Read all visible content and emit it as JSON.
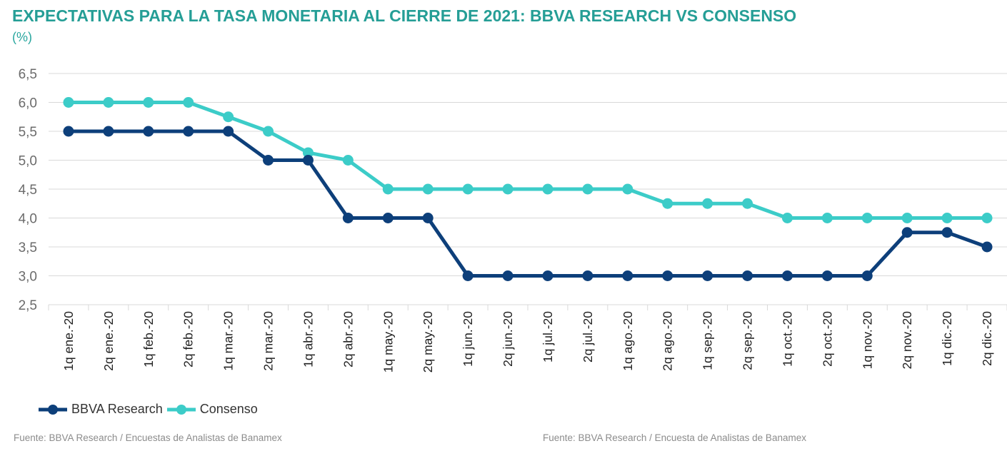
{
  "header": {
    "title": "EXPECTATIVAS PARA LA TASA MONETARIA AL CIERRE DE 2021: BBVA RESEARCH VS CONSENSO",
    "unit": "(%)"
  },
  "footer": {
    "source_left": "Fuente: BBVA Research / Encuestas de Analistas de Banamex",
    "source_right": "Fuente: BBVA Research / Encuesta de Analistas de Banamex"
  },
  "colors": {
    "title": "#259e96",
    "bbva": "#0d3f7a",
    "consenso": "#3cccc8",
    "grid": "#d9d9d9",
    "axis_text": "#6b6b6b"
  },
  "chart_data": {
    "type": "line",
    "categories": [
      "1q ene.-20",
      "2q ene.-20",
      "1q feb.-20",
      "2q feb.-20",
      "1q mar.-20",
      "2q mar.-20",
      "1q abr.-20",
      "2q abr.-20",
      "1q may.-20",
      "2q may.-20",
      "1q jun.-20",
      "2q jun.-20",
      "1q jul.-20",
      "2q jul.-20",
      "1q ago.-20",
      "2q ago.-20",
      "1q sep.-20",
      "2q sep.-20",
      "1q oct.-20",
      "2q oct.-20",
      "1q nov.-20",
      "2q nov.-20",
      "1q dic.-20",
      "2q dic.-20"
    ],
    "series": [
      {
        "name": "BBVA Research",
        "color": "#0d3f7a",
        "values": [
          5.5,
          5.5,
          5.5,
          5.5,
          5.5,
          5.0,
          5.0,
          4.0,
          4.0,
          4.0,
          3.0,
          3.0,
          3.0,
          3.0,
          3.0,
          3.0,
          3.0,
          3.0,
          3.0,
          3.0,
          3.0,
          3.75,
          3.75,
          3.5
        ]
      },
      {
        "name": "Consenso",
        "color": "#3cccc8",
        "values": [
          6.0,
          6.0,
          6.0,
          6.0,
          5.75,
          5.5,
          5.13,
          5.0,
          4.5,
          4.5,
          4.5,
          4.5,
          4.5,
          4.5,
          4.5,
          4.25,
          4.25,
          4.25,
          4.0,
          4.0,
          4.0,
          4.0,
          4.0,
          4.0
        ]
      }
    ],
    "ylim": [
      2.5,
      6.5
    ],
    "yticks": [
      "2,5",
      "3,0",
      "3,5",
      "4,0",
      "4,5",
      "5,0",
      "5,5",
      "6,0",
      "6,5"
    ],
    "ytick_values": [
      2.5,
      3.0,
      3.5,
      4.0,
      4.5,
      5.0,
      5.5,
      6.0,
      6.5
    ],
    "grid": true,
    "legend_position": "bottom-left"
  }
}
